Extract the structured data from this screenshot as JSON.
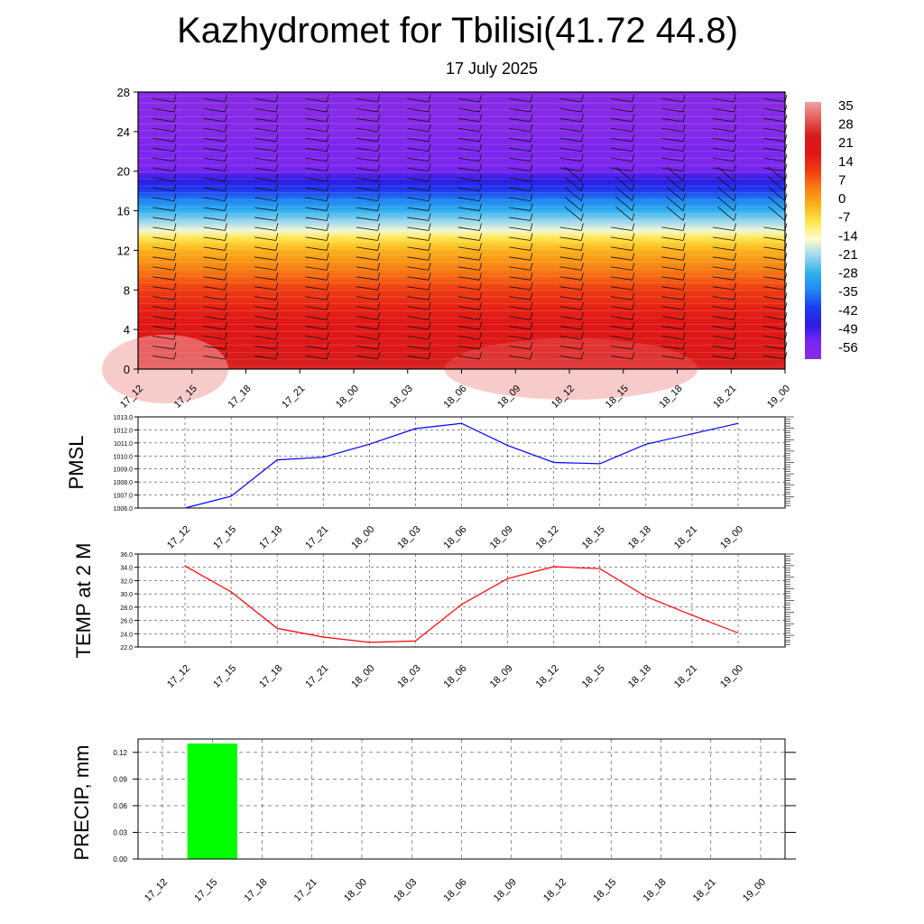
{
  "header": {
    "title": "Kazhydromet for Tbilisi(41.72 44.8)",
    "subtitle": "17 July 2025"
  },
  "colors": {
    "pmsl_line": "#0000ff",
    "temp_line": "#ff0000",
    "precip_bar": "#00ff00",
    "colormap": [
      "#8a2be2",
      "#7b26f0",
      "#2b1be0",
      "#1f3cf0",
      "#1e86f2",
      "#2fb0ee",
      "#9bd6ef",
      "#fefbd0",
      "#fde84a",
      "#fbb21a",
      "#f77b12",
      "#ef3c12",
      "#e11616",
      "#d81a1a",
      "#e65a5a",
      "#f2a0a0"
    ]
  },
  "time_labels": [
    "17_12",
    "17_15",
    "17_18",
    "17_21",
    "18_00",
    "18_03",
    "18_06",
    "18_09",
    "18_12",
    "18_15",
    "18_18",
    "18_21",
    "19_00"
  ],
  "chart_data": [
    {
      "id": "cross-section",
      "type": "heatmap",
      "title": "",
      "xlabel": "",
      "ylabel": "",
      "x": [
        "17_12",
        "17_15",
        "17_18",
        "17_21",
        "18_00",
        "18_03",
        "18_06",
        "18_09",
        "18_12",
        "18_15",
        "18_18",
        "18_21",
        "19_00"
      ],
      "y_ticks": [
        0,
        4,
        8,
        12,
        16,
        20,
        24,
        28
      ],
      "ylim": [
        0,
        28
      ],
      "colorbar": {
        "labels": [
          "35",
          "28",
          "21",
          "14",
          "7",
          "0",
          "-7",
          "-14",
          "-21",
          "-28",
          "-35",
          "-42",
          "-49",
          "-56"
        ],
        "range": [
          -63,
          42
        ]
      },
      "temperature_profile_by_height": [
        {
          "height": 0,
          "value": 30
        },
        {
          "height": 2,
          "value": 25
        },
        {
          "height": 4,
          "value": 22
        },
        {
          "height": 6,
          "value": 19
        },
        {
          "height": 8,
          "value": 14
        },
        {
          "height": 10,
          "value": 7
        },
        {
          "height": 12,
          "value": 0
        },
        {
          "height": 13.3,
          "value": -7
        },
        {
          "height": 14,
          "value": -15
        },
        {
          "height": 16,
          "value": -28
        },
        {
          "height": 18,
          "value": -42
        },
        {
          "height": 20,
          "value": -55
        },
        {
          "height": 21,
          "value": -58
        },
        {
          "height": 22,
          "value": -56
        },
        {
          "height": 24,
          "value": -60
        },
        {
          "height": 28,
          "value": -62
        }
      ],
      "wind_barbs": "shown"
    },
    {
      "id": "pmsl",
      "type": "line",
      "ylabel": "PMSL",
      "categories": [
        "17_12",
        "17_15",
        "17_18",
        "17_21",
        "18_00",
        "18_03",
        "18_06",
        "18_09",
        "18_12",
        "18_15",
        "18_18",
        "18_21",
        "19_00"
      ],
      "values": [
        1006.0,
        1006.9,
        1009.7,
        1009.9,
        1010.9,
        1012.1,
        1012.5,
        1010.8,
        1009.5,
        1009.4,
        1010.9,
        1011.7,
        1012.5
      ],
      "ylim": [
        1006.0,
        1013.0
      ],
      "y_ticks": [
        "1006.0",
        "1007.0",
        "1008.0",
        "1009.0",
        "1010.0",
        "1011.0",
        "1012.0",
        "1013.0"
      ],
      "grid": true
    },
    {
      "id": "temp2m",
      "type": "line",
      "ylabel": "TEMP at 2 M",
      "categories": [
        "17_12",
        "17_15",
        "17_18",
        "17_21",
        "18_00",
        "18_03",
        "18_06",
        "18_09",
        "18_12",
        "18_15",
        "18_18",
        "18_21",
        "19_00"
      ],
      "values": [
        34.2,
        30.3,
        24.8,
        23.5,
        22.7,
        22.9,
        28.4,
        32.3,
        34.1,
        33.8,
        29.6,
        26.8,
        24.1
      ],
      "ylim": [
        22.0,
        36.0
      ],
      "y_ticks": [
        "22.0",
        "24.0",
        "26.0",
        "28.0",
        "30.0",
        "32.0",
        "34.0",
        "36.0"
      ],
      "grid": true
    },
    {
      "id": "precip",
      "type": "bar",
      "ylabel": "PRECIP, mm",
      "categories": [
        "17_12",
        "17_15",
        "17_18",
        "17_21",
        "18_00",
        "18_03",
        "18_06",
        "18_09",
        "18_12",
        "18_15",
        "18_18",
        "18_21",
        "19_00"
      ],
      "values": [
        0,
        0.13,
        0,
        0,
        0,
        0,
        0,
        0,
        0,
        0,
        0,
        0,
        0
      ],
      "ylim": [
        0,
        0.135
      ],
      "y_ticks": [
        "0.00",
        "0.03",
        "0.06",
        "0.09",
        "0.12"
      ],
      "grid": true
    }
  ]
}
